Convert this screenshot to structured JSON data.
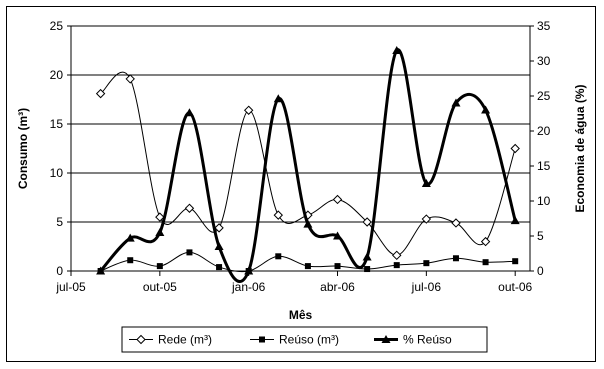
{
  "chart_data": {
    "type": "line",
    "xlabel": "Mês",
    "ylabel": "Consumo (m³)",
    "y2label": "Economia de água (%)",
    "x_ticks": [
      "jul-05",
      "out-05",
      "jan-06",
      "abr-06",
      "jul-06",
      "out-06"
    ],
    "ylim": [
      0,
      25
    ],
    "y_ticks": [
      "0",
      "5",
      "10",
      "15",
      "20",
      "25"
    ],
    "y2lim": [
      0,
      35
    ],
    "y2_ticks": [
      "0",
      "5",
      "10",
      "15",
      "20",
      "25",
      "30",
      "35"
    ],
    "grid": "horizontal",
    "legend_position": "bottom",
    "x": [
      "2005-08",
      "2005-09",
      "2005-10",
      "2005-11",
      "2005-12",
      "2006-01",
      "2006-02",
      "2006-03",
      "2006-04",
      "2006-05",
      "2006-06",
      "2006-07",
      "2006-08",
      "2006-09",
      "2006-10"
    ],
    "series": [
      {
        "name": "Rede (m³)",
        "axis": "left",
        "marker": "diamond-open",
        "line": "thin",
        "values": [
          18.1,
          19.6,
          5.5,
          6.4,
          4.4,
          16.4,
          5.7,
          5.7,
          7.3,
          5.0,
          1.6,
          5.3,
          4.9,
          3.0,
          12.5
        ]
      },
      {
        "name": "Reúso (m³)",
        "axis": "left",
        "marker": "square-filled",
        "line": "thin",
        "values": [
          0.0,
          1.1,
          0.5,
          1.9,
          0.4,
          0.0,
          1.5,
          0.5,
          0.5,
          0.2,
          0.6,
          0.8,
          1.3,
          0.9,
          1.0
        ]
      },
      {
        "name": "% Reúso",
        "axis": "right",
        "marker": "triangle-filled",
        "line": "thick",
        "values": [
          0.0,
          4.7,
          5.5,
          22.6,
          3.5,
          0.0,
          24.6,
          6.7,
          5.0,
          2.0,
          31.5,
          12.5,
          24.0,
          23.0,
          7.2
        ]
      }
    ]
  }
}
